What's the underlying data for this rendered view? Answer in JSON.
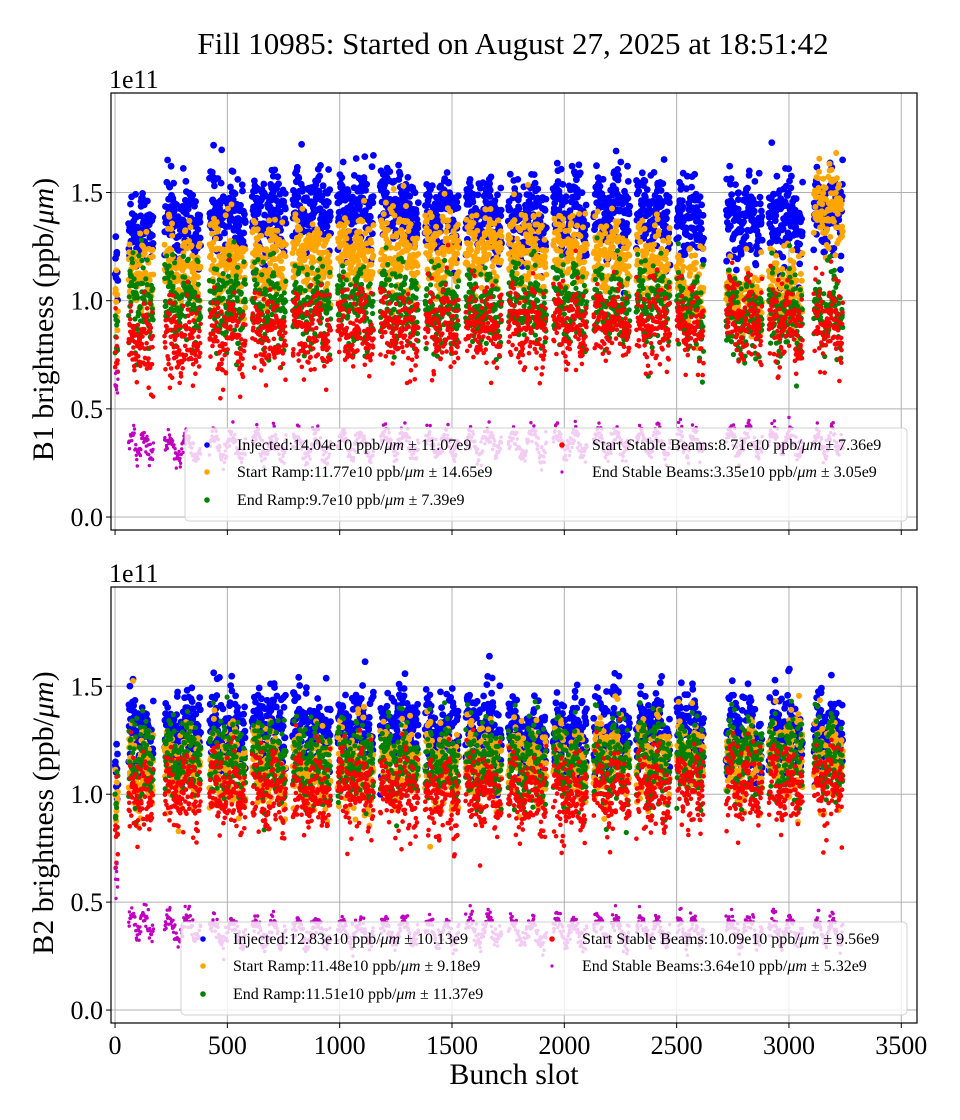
{
  "figure": {
    "title": "Fill 10985: Started on August 27, 2025 at 18:51:42"
  },
  "chart_data": [
    {
      "type": "scatter",
      "panel": "top",
      "title": "",
      "xlabel": "",
      "ylabel": "B1 brightness (ppb/μm)",
      "ylabel_parts": [
        "B1 brightness (ppb/",
        "μm",
        ")"
      ],
      "offset_label": "1e11",
      "xlim": [
        -18,
        3570
      ],
      "ylim": [
        -6000000000.0,
        196000000000.0
      ],
      "xticks": [
        0,
        500,
        1000,
        1500,
        2000,
        2500,
        3000,
        3500
      ],
      "xtick_labels": [
        "",
        "",
        "",
        "",
        "",
        "",
        "",
        ""
      ],
      "yticks": [
        0.0,
        50000000000.0,
        100000000000.0,
        150000000000.0
      ],
      "ytick_labels": [
        "0.0",
        "0.5",
        "1.0",
        "1.5"
      ],
      "grid": true,
      "legend_position": "lower-center",
      "series": [
        {
          "name": "Injected",
          "color": "#0000ff",
          "mean": 140400000000.0,
          "std": 11070000000.0,
          "legend": {
            "name": "Injected",
            "value": "14.04e10",
            "unit": "ppb/μm",
            "err": "11.07e9"
          }
        },
        {
          "name": "Start Ramp",
          "color": "#ffa500",
          "mean": 117700000000.0,
          "std": 14650000000.0,
          "legend": {
            "name": "Start Ramp",
            "value": "11.77e10",
            "unit": "ppb/μm",
            "err": "14.65e9"
          }
        },
        {
          "name": "End Ramp",
          "color": "#008000",
          "mean": 97000000000.0,
          "std": 7390000000.0,
          "legend": {
            "name": "End Ramp",
            "value": "9.7e10",
            "unit": "ppb/μm",
            "err": "7.39e9"
          }
        },
        {
          "name": "Start Stable Beams",
          "color": "#ff0000",
          "mean": 87100000000.0,
          "std": 7360000000.0,
          "legend": {
            "name": "Start Stable Beams",
            "value": "8.71e10",
            "unit": "ppb/μm",
            "err": "7.36e9"
          }
        },
        {
          "name": "End Stable Beams",
          "color": "#bf00bf",
          "mean": 33500000000.0,
          "std": 3050000000.0,
          "legend": {
            "name": "End Stable Beams",
            "value": "3.35e10",
            "unit": "ppb/μm",
            "err": "3.05e9"
          }
        }
      ],
      "trains": [
        {
          "start": 0,
          "end": 12,
          "levels": [
            115000000000.0,
            100000000000.0,
            85000000000.0,
            75000000000.0,
            62000000000.0
          ]
        },
        {
          "start": 60,
          "end": 170,
          "levels": [
            133000000000.0,
            112000000000.0,
            98000000000.0,
            80000000000.0,
            33000000000.0
          ]
        },
        {
          "start": 220,
          "end": 380,
          "levels": [
            137000000000.0,
            115000000000.0,
            99000000000.0,
            82000000000.0,
            32000000000.0
          ]
        },
        {
          "start": 420,
          "end": 580,
          "levels": [
            140000000000.0,
            117000000000.0,
            98000000000.0,
            83000000000.0,
            33000000000.0
          ]
        },
        {
          "start": 610,
          "end": 760,
          "levels": [
            140000000000.0,
            118000000000.0,
            97000000000.0,
            85000000000.0,
            33000000000.0
          ]
        },
        {
          "start": 790,
          "end": 960,
          "levels": [
            142000000000.0,
            120000000000.0,
            97000000000.0,
            86000000000.0,
            33000000000.0
          ]
        },
        {
          "start": 990,
          "end": 1150,
          "levels": [
            143000000000.0,
            121000000000.0,
            97000000000.0,
            87000000000.0,
            33000000000.0
          ]
        },
        {
          "start": 1180,
          "end": 1350,
          "levels": [
            142000000000.0,
            122000000000.0,
            98000000000.0,
            87000000000.0,
            34000000000.0
          ]
        },
        {
          "start": 1380,
          "end": 1530,
          "levels": [
            140000000000.0,
            123000000000.0,
            97000000000.0,
            88000000000.0,
            34000000000.0
          ]
        },
        {
          "start": 1560,
          "end": 1720,
          "levels": [
            138000000000.0,
            124000000000.0,
            97000000000.0,
            88000000000.0,
            34000000000.0
          ]
        },
        {
          "start": 1750,
          "end": 1920,
          "levels": [
            138000000000.0,
            123000000000.0,
            97000000000.0,
            89000000000.0,
            34000000000.0
          ]
        },
        {
          "start": 1950,
          "end": 2100,
          "levels": [
            140000000000.0,
            122000000000.0,
            98000000000.0,
            89000000000.0,
            34000000000.0
          ]
        },
        {
          "start": 2130,
          "end": 2290,
          "levels": [
            142000000000.0,
            120000000000.0,
            97000000000.0,
            89000000000.0,
            34000000000.0
          ]
        },
        {
          "start": 2320,
          "end": 2470,
          "levels": [
            140000000000.0,
            117000000000.0,
            97000000000.0,
            89000000000.0,
            34000000000.0
          ]
        },
        {
          "start": 2500,
          "end": 2620,
          "levels": [
            138000000000.0,
            105000000000.0,
            95000000000.0,
            89000000000.0,
            35000000000.0
          ]
        },
        {
          "start": 2720,
          "end": 2880,
          "levels": [
            140000000000.0,
            100000000000.0,
            94000000000.0,
            90000000000.0,
            35000000000.0
          ]
        },
        {
          "start": 2910,
          "end": 3060,
          "levels": [
            138000000000.0,
            105000000000.0,
            95000000000.0,
            90000000000.0,
            35000000000.0
          ]
        },
        {
          "start": 3110,
          "end": 3240,
          "levels": [
            140000000000.0,
            145000000000.0,
            96000000000.0,
            90000000000.0,
            35000000000.0
          ]
        }
      ]
    },
    {
      "type": "scatter",
      "panel": "bottom",
      "title": "",
      "xlabel": "Bunch slot",
      "ylabel": "B2 brightness (ppb/μm)",
      "ylabel_parts": [
        "B2 brightness (ppb/",
        "μm",
        ")"
      ],
      "offset_label": "1e11",
      "xlim": [
        -18,
        3570
      ],
      "ylim": [
        -6000000000.0,
        196000000000.0
      ],
      "xticks": [
        0,
        500,
        1000,
        1500,
        2000,
        2500,
        3000,
        3500
      ],
      "xtick_labels": [
        "0",
        "500",
        "1000",
        "1500",
        "2000",
        "2500",
        "3000",
        "3500"
      ],
      "yticks": [
        0.0,
        50000000000.0,
        100000000000.0,
        150000000000.0
      ],
      "ytick_labels": [
        "0.0",
        "0.5",
        "1.0",
        "1.5"
      ],
      "grid": true,
      "legend_position": "lower-center",
      "series": [
        {
          "name": "Injected",
          "color": "#0000ff",
          "mean": 128300000000.0,
          "std": 10130000000.0,
          "legend": {
            "name": "Injected",
            "value": "12.83e10",
            "unit": "ppb/μm",
            "err": "10.13e9"
          }
        },
        {
          "name": "Start Ramp",
          "color": "#ffa500",
          "mean": 114800000000.0,
          "std": 9180000000.0,
          "legend": {
            "name": "Start Ramp",
            "value": "11.48e10",
            "unit": "ppb/μm",
            "err": "9.18e9"
          }
        },
        {
          "name": "End Ramp",
          "color": "#008000",
          "mean": 115100000000.0,
          "std": 11370000000.0,
          "legend": {
            "name": "End Ramp",
            "value": "11.51e10",
            "unit": "ppb/μm",
            "err": "11.37e9"
          }
        },
        {
          "name": "Start Stable Beams",
          "color": "#ff0000",
          "mean": 100900000000.0,
          "std": 9560000000.0,
          "legend": {
            "name": "Start Stable Beams",
            "value": "10.09e10",
            "unit": "ppb/μm",
            "err": "9.56e9"
          }
        },
        {
          "name": "End Stable Beams",
          "color": "#bf00bf",
          "mean": 36400000000.0,
          "std": 5320000000.0,
          "legend": {
            "name": "End Stable Beams",
            "value": "3.64e10",
            "unit": "ppb/μm",
            "err": "5.32e9"
          }
        }
      ],
      "trains": [
        {
          "start": 0,
          "end": 12,
          "levels": [
            112000000000.0,
            95000000000.0,
            95000000000.0,
            85000000000.0,
            62000000000.0
          ]
        },
        {
          "start": 60,
          "end": 170,
          "levels": [
            128000000000.0,
            110000000000.0,
            117000000000.0,
            100000000000.0,
            40000000000.0
          ]
        },
        {
          "start": 220,
          "end": 380,
          "levels": [
            130000000000.0,
            113000000000.0,
            118000000000.0,
            102000000000.0,
            38000000000.0
          ]
        },
        {
          "start": 420,
          "end": 580,
          "levels": [
            129000000000.0,
            112000000000.0,
            116000000000.0,
            100000000000.0,
            36000000000.0
          ]
        },
        {
          "start": 610,
          "end": 760,
          "levels": [
            130000000000.0,
            112000000000.0,
            116000000000.0,
            101000000000.0,
            36000000000.0
          ]
        },
        {
          "start": 790,
          "end": 960,
          "levels": [
            129000000000.0,
            112000000000.0,
            115000000000.0,
            100000000000.0,
            36000000000.0
          ]
        },
        {
          "start": 990,
          "end": 1150,
          "levels": [
            130000000000.0,
            113000000000.0,
            115000000000.0,
            101000000000.0,
            36000000000.0
          ]
        },
        {
          "start": 1180,
          "end": 1350,
          "levels": [
            130000000000.0,
            114000000000.0,
            115000000000.0,
            101000000000.0,
            36000000000.0
          ]
        },
        {
          "start": 1380,
          "end": 1530,
          "levels": [
            129000000000.0,
            114000000000.0,
            114000000000.0,
            100000000000.0,
            36000000000.0
          ]
        },
        {
          "start": 1560,
          "end": 1720,
          "levels": [
            131000000000.0,
            115000000000.0,
            115000000000.0,
            102000000000.0,
            37000000000.0
          ]
        },
        {
          "start": 1750,
          "end": 1920,
          "levels": [
            127000000000.0,
            113000000000.0,
            113000000000.0,
            99000000000.0,
            36000000000.0
          ]
        },
        {
          "start": 1950,
          "end": 2100,
          "levels": [
            127000000000.0,
            113000000000.0,
            113000000000.0,
            100000000000.0,
            36000000000.0
          ]
        },
        {
          "start": 2130,
          "end": 2290,
          "levels": [
            128000000000.0,
            115000000000.0,
            114000000000.0,
            101000000000.0,
            37000000000.0
          ]
        },
        {
          "start": 2320,
          "end": 2470,
          "levels": [
            129000000000.0,
            116000000000.0,
            115000000000.0,
            102000000000.0,
            37000000000.0
          ]
        },
        {
          "start": 2500,
          "end": 2620,
          "levels": [
            130000000000.0,
            116000000000.0,
            116000000000.0,
            103000000000.0,
            37000000000.0
          ]
        },
        {
          "start": 2720,
          "end": 2880,
          "levels": [
            125000000000.0,
            116000000000.0,
            117000000000.0,
            104000000000.0,
            37000000000.0
          ]
        },
        {
          "start": 2910,
          "end": 3060,
          "levels": [
            128000000000.0,
            116000000000.0,
            117000000000.0,
            103000000000.0,
            37000000000.0
          ]
        },
        {
          "start": 3110,
          "end": 3240,
          "levels": [
            128000000000.0,
            115000000000.0,
            117000000000.0,
            105000000000.0,
            37000000000.0
          ]
        }
      ]
    }
  ]
}
